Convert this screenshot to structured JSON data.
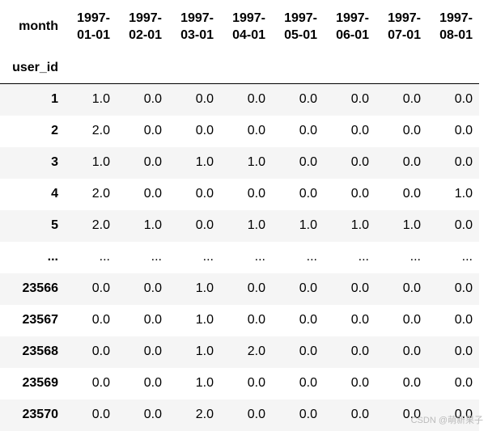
{
  "table": {
    "index_name": "month",
    "index_label": "user_id",
    "columns": [
      "1997-01-01",
      "1997-02-01",
      "1997-03-01",
      "1997-04-01",
      "1997-05-01",
      "1997-06-01",
      "1997-07-01",
      "1997-08-01"
    ],
    "rows": [
      {
        "index": "1",
        "values": [
          "1.0",
          "0.0",
          "0.0",
          "0.0",
          "0.0",
          "0.0",
          "0.0",
          "0.0"
        ]
      },
      {
        "index": "2",
        "values": [
          "2.0",
          "0.0",
          "0.0",
          "0.0",
          "0.0",
          "0.0",
          "0.0",
          "0.0"
        ]
      },
      {
        "index": "3",
        "values": [
          "1.0",
          "0.0",
          "1.0",
          "1.0",
          "0.0",
          "0.0",
          "0.0",
          "0.0"
        ]
      },
      {
        "index": "4",
        "values": [
          "2.0",
          "0.0",
          "0.0",
          "0.0",
          "0.0",
          "0.0",
          "0.0",
          "1.0"
        ]
      },
      {
        "index": "5",
        "values": [
          "2.0",
          "1.0",
          "0.0",
          "1.0",
          "1.0",
          "1.0",
          "1.0",
          "0.0"
        ]
      },
      {
        "index": "...",
        "values": [
          "...",
          "...",
          "...",
          "...",
          "...",
          "...",
          "...",
          "..."
        ]
      },
      {
        "index": "23566",
        "values": [
          "0.0",
          "0.0",
          "1.0",
          "0.0",
          "0.0",
          "0.0",
          "0.0",
          "0.0"
        ]
      },
      {
        "index": "23567",
        "values": [
          "0.0",
          "0.0",
          "1.0",
          "0.0",
          "0.0",
          "0.0",
          "0.0",
          "0.0"
        ]
      },
      {
        "index": "23568",
        "values": [
          "0.0",
          "0.0",
          "1.0",
          "2.0",
          "0.0",
          "0.0",
          "0.0",
          "0.0"
        ]
      },
      {
        "index": "23569",
        "values": [
          "0.0",
          "0.0",
          "1.0",
          "0.0",
          "0.0",
          "0.0",
          "0.0",
          "0.0"
        ]
      },
      {
        "index": "23570",
        "values": [
          "0.0",
          "0.0",
          "2.0",
          "0.0",
          "0.0",
          "0.0",
          "0.0",
          "0.0"
        ]
      }
    ]
  },
  "watermark": "CSDN @萌新果子"
}
